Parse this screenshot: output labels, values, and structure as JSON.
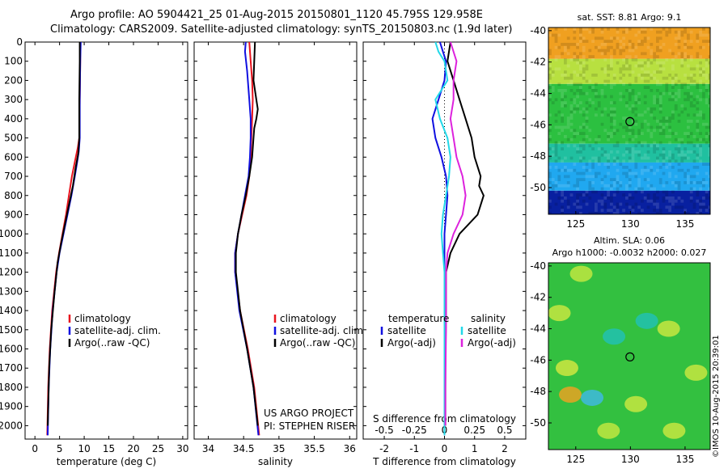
{
  "header": {
    "line1": "Argo profile: AO 5904421_25 01-Aug-2015 20150801_1120 45.795S 129.958E",
    "line2": "Climatology: CARS2009. Satellite-adjusted climatology: synTS_20150803.nc (1.9d later)"
  },
  "credits": {
    "project": "US ARGO PROJECT",
    "pi": "PI: STEPHEN RISER"
  },
  "footer": "©IMOS 10-Aug-2015 20:39:01",
  "colors": {
    "climatology": "#e8141e",
    "satellite": "#1010e0",
    "argo": "#000000",
    "satellite_salinity": "#22d8e8",
    "argo_salinity": "#dd22dd"
  },
  "chart_data": [
    {
      "type": "line",
      "panel": "temperature",
      "xlabel": "temperature (deg C)",
      "ylabel": "",
      "xlim": [
        -2,
        31
      ],
      "ylim": [
        2070,
        0
      ],
      "xticks": [
        0,
        5,
        10,
        15,
        20,
        25,
        30
      ],
      "yticks": [
        0,
        100,
        200,
        300,
        400,
        500,
        600,
        700,
        800,
        900,
        1000,
        1100,
        1200,
        1300,
        1400,
        1500,
        1600,
        1700,
        1800,
        1900,
        2000
      ],
      "legend": [
        "climatology",
        "satellite-adj. clim.",
        "Argo(..raw -QC)"
      ],
      "legend_position": "lower-right",
      "series": [
        {
          "name": "climatology",
          "color": "#e8141e",
          "depth": [
            0,
            100,
            300,
            500,
            550,
            600,
            650,
            700,
            800,
            900,
            1000,
            1100,
            1200,
            1400,
            1600,
            1800,
            2050
          ],
          "values": [
            9.2,
            9.2,
            9.1,
            9.0,
            8.7,
            8.3,
            7.9,
            7.5,
            6.9,
            6.3,
            5.6,
            4.9,
            4.3,
            3.5,
            3.0,
            2.7,
            2.5
          ]
        },
        {
          "name": "satellite-adj. clim.",
          "color": "#1010e0",
          "depth": [
            0,
            100,
            300,
            500,
            570,
            620,
            700,
            800,
            900,
            1000,
            1100,
            1200,
            1400,
            1600,
            1800,
            2050
          ],
          "values": [
            9.3,
            9.2,
            9.1,
            9.1,
            8.9,
            8.6,
            8.1,
            7.4,
            6.6,
            5.8,
            5.0,
            4.4,
            3.6,
            3.1,
            2.8,
            2.6
          ]
        },
        {
          "name": "Argo(..raw -QC)",
          "color": "#000000",
          "depth": [
            0,
            100,
            300,
            500,
            580,
            650,
            750,
            850,
            950,
            1050,
            1150,
            1300,
            1500,
            1700,
            1900,
            2000
          ],
          "values": [
            9.1,
            9.1,
            9.0,
            9.0,
            8.8,
            8.3,
            7.7,
            6.9,
            6.1,
            5.3,
            4.6,
            4.0,
            3.3,
            2.9,
            2.7,
            2.6
          ]
        }
      ]
    },
    {
      "type": "line",
      "panel": "salinity",
      "xlabel": "salinity",
      "ylabel": "",
      "xlim": [
        33.8,
        36.1
      ],
      "ylim": [
        2070,
        0
      ],
      "xticks": [
        34,
        34.5,
        35,
        35.5,
        36
      ],
      "legend": [
        "climatology",
        "satellite-adj. clim.",
        "Argo(..raw -QC)"
      ],
      "legend_position": "lower-right",
      "series": [
        {
          "name": "climatology",
          "color": "#e8141e",
          "depth": [
            0,
            100,
            200,
            300,
            400,
            500,
            600,
            700,
            800,
            900,
            1000,
            1100,
            1200,
            1400,
            1600,
            1800,
            2050
          ],
          "values": [
            34.58,
            34.6,
            34.62,
            34.63,
            34.62,
            34.61,
            34.6,
            34.58,
            34.54,
            34.48,
            34.42,
            34.38,
            34.38,
            34.45,
            34.56,
            34.65,
            34.72
          ]
        },
        {
          "name": "satellite-adj. clim.",
          "color": "#1010e0",
          "depth": [
            0,
            50,
            150,
            300,
            400,
            500,
            600,
            700,
            800,
            900,
            1000,
            1100,
            1200,
            1400,
            1600,
            1800,
            2050
          ],
          "values": [
            34.53,
            34.52,
            34.55,
            34.58,
            34.6,
            34.6,
            34.59,
            34.57,
            34.52,
            34.47,
            34.42,
            34.38,
            34.38,
            34.44,
            34.55,
            34.64,
            34.71
          ]
        },
        {
          "name": "Argo(..raw -QC)",
          "color": "#000000",
          "depth": [
            0,
            100,
            200,
            300,
            350,
            400,
            450,
            500,
            600,
            700,
            800,
            900,
            1000,
            1100,
            1200,
            1400,
            1600,
            1800,
            2000
          ],
          "values": [
            34.66,
            34.65,
            34.64,
            34.68,
            34.7,
            34.68,
            34.65,
            34.64,
            34.62,
            34.58,
            34.53,
            34.47,
            34.42,
            34.39,
            34.39,
            34.45,
            34.55,
            34.64,
            34.7
          ]
        }
      ]
    },
    {
      "type": "line",
      "panel": "difference",
      "xlabel": "T difference from climatology",
      "secondary_xlabel": "S difference from climatology",
      "xlim": [
        -2.7,
        2.7
      ],
      "ylim": [
        2070,
        0
      ],
      "xticks": [
        -2,
        -1,
        0,
        1,
        2
      ],
      "xtick_labels": [
        "-2",
        "-1",
        "0",
        "1",
        "2"
      ],
      "secondary_xticks": [
        -2,
        -1,
        0,
        1,
        2
      ],
      "secondary_xtick_labels": [
        "-0.5",
        "-0.25",
        "0",
        "0.25",
        "0.5"
      ],
      "legend_temperature_title": "temperature",
      "legend_salinity_title": "salinity",
      "legend": {
        "temperature": [
          "satellite",
          "Argo(-adj)"
        ],
        "salinity": [
          "satellite",
          "Argo(-adj)"
        ]
      },
      "series": [
        {
          "name": "temperature satellite",
          "color": "#1010e0",
          "depth": [
            0,
            50,
            100,
            200,
            300,
            400,
            500,
            600,
            700,
            800,
            900,
            1000,
            1200,
            1500,
            1800,
            2050
          ],
          "values": [
            -0.15,
            -0.05,
            0.05,
            0.0,
            -0.2,
            -0.4,
            -0.3,
            -0.1,
            0.05,
            0.1,
            0.05,
            0.0,
            0.0,
            0.0,
            0.0,
            0.0
          ]
        },
        {
          "name": "temperature Argo(-adj)",
          "color": "#000000",
          "depth": [
            0,
            100,
            200,
            300,
            400,
            500,
            600,
            700,
            750,
            800,
            850,
            900,
            950,
            1000,
            1100,
            1200,
            1400,
            1700,
            2000
          ],
          "values": [
            0.2,
            0.1,
            0.3,
            0.5,
            0.7,
            0.9,
            1.0,
            1.2,
            1.15,
            1.3,
            1.2,
            1.1,
            0.8,
            0.5,
            0.2,
            0.05,
            0.05,
            0.03,
            0.03
          ]
        },
        {
          "name": "salinity satellite",
          "color": "#22d8e8",
          "depth": [
            0,
            50,
            100,
            200,
            300,
            400,
            500,
            600,
            700,
            800,
            900,
            1000,
            1100,
            1200,
            1500,
            1800,
            2050
          ],
          "values": [
            -0.3,
            -0.2,
            0.0,
            0.1,
            -0.3,
            -0.15,
            0.1,
            0.2,
            0.15,
            0.05,
            -0.05,
            -0.1,
            -0.05,
            0.0,
            0.0,
            0.0,
            0.0
          ]
        },
        {
          "name": "salinity Argo(-adj)",
          "color": "#dd22dd",
          "depth": [
            0,
            100,
            200,
            300,
            400,
            500,
            600,
            700,
            800,
            900,
            1000,
            1100,
            1200,
            1500,
            1800,
            2000
          ],
          "values": [
            0.2,
            0.4,
            0.3,
            0.3,
            0.2,
            0.3,
            0.4,
            0.6,
            0.7,
            0.6,
            0.3,
            0.1,
            0.05,
            0.05,
            0.03,
            0.03
          ]
        }
      ]
    },
    {
      "type": "heatmap",
      "panel": "satellite-sst",
      "title": "sat. SST: 8.81  Argo: 9.1",
      "xlim": [
        122.5,
        137.3
      ],
      "ylim": [
        -51.7,
        -39.8
      ],
      "xticks": [
        125,
        130,
        135
      ],
      "yticks": [
        -40,
        -42,
        -44,
        -46,
        -48,
        -50
      ],
      "marker": {
        "lon": 129.958,
        "lat": -45.795
      },
      "rows": [
        {
          "lat_max": -39.8,
          "lat_min": -41.8,
          "color": "#f0a020"
        },
        {
          "lat_max": -41.8,
          "lat_min": -43.4,
          "color": "#b8e040"
        },
        {
          "lat_max": -43.4,
          "lat_min": -47.2,
          "color": "#2cc040"
        },
        {
          "lat_max": -47.2,
          "lat_min": -48.4,
          "color": "#20c0a0"
        },
        {
          "lat_max": -48.4,
          "lat_min": -50.2,
          "color": "#20a8f0"
        },
        {
          "lat_max": -50.2,
          "lat_min": -51.7,
          "color": "#0820a0"
        }
      ]
    },
    {
      "type": "heatmap",
      "panel": "altimetry-sla",
      "title_line1": "Altim. SLA: 0.06",
      "title_line2": "Argo h1000: -0.0032  h2000: 0.027",
      "xlim": [
        122.5,
        137.3
      ],
      "ylim": [
        -51.7,
        -39.8
      ],
      "xticks": [
        125,
        130,
        135
      ],
      "yticks": [
        -40,
        -42,
        -44,
        -46,
        -48,
        -50
      ],
      "marker": {
        "lon": 129.958,
        "lat": -45.795
      },
      "base_color": "#33c040",
      "blobs": [
        {
          "lon": 125.5,
          "lat": -40.5,
          "color": "#c8e840"
        },
        {
          "lon": 123.5,
          "lat": -43.0,
          "color": "#d0e840"
        },
        {
          "lon": 124.2,
          "lat": -46.5,
          "color": "#d8e840"
        },
        {
          "lon": 124.5,
          "lat": -48.2,
          "color": "#f4a020"
        },
        {
          "lon": 126.5,
          "lat": -48.4,
          "color": "#40b8e8"
        },
        {
          "lon": 133.5,
          "lat": -44.0,
          "color": "#d0e840"
        },
        {
          "lon": 136.0,
          "lat": -46.8,
          "color": "#d0e840"
        },
        {
          "lon": 130.5,
          "lat": -48.8,
          "color": "#d0e840"
        },
        {
          "lon": 128.0,
          "lat": -50.5,
          "color": "#c8e840"
        },
        {
          "lon": 134.0,
          "lat": -50.5,
          "color": "#d0e840"
        },
        {
          "lon": 131.5,
          "lat": -43.5,
          "color": "#20c0b8"
        },
        {
          "lon": 128.5,
          "lat": -44.5,
          "color": "#20c0b8"
        }
      ]
    }
  ]
}
